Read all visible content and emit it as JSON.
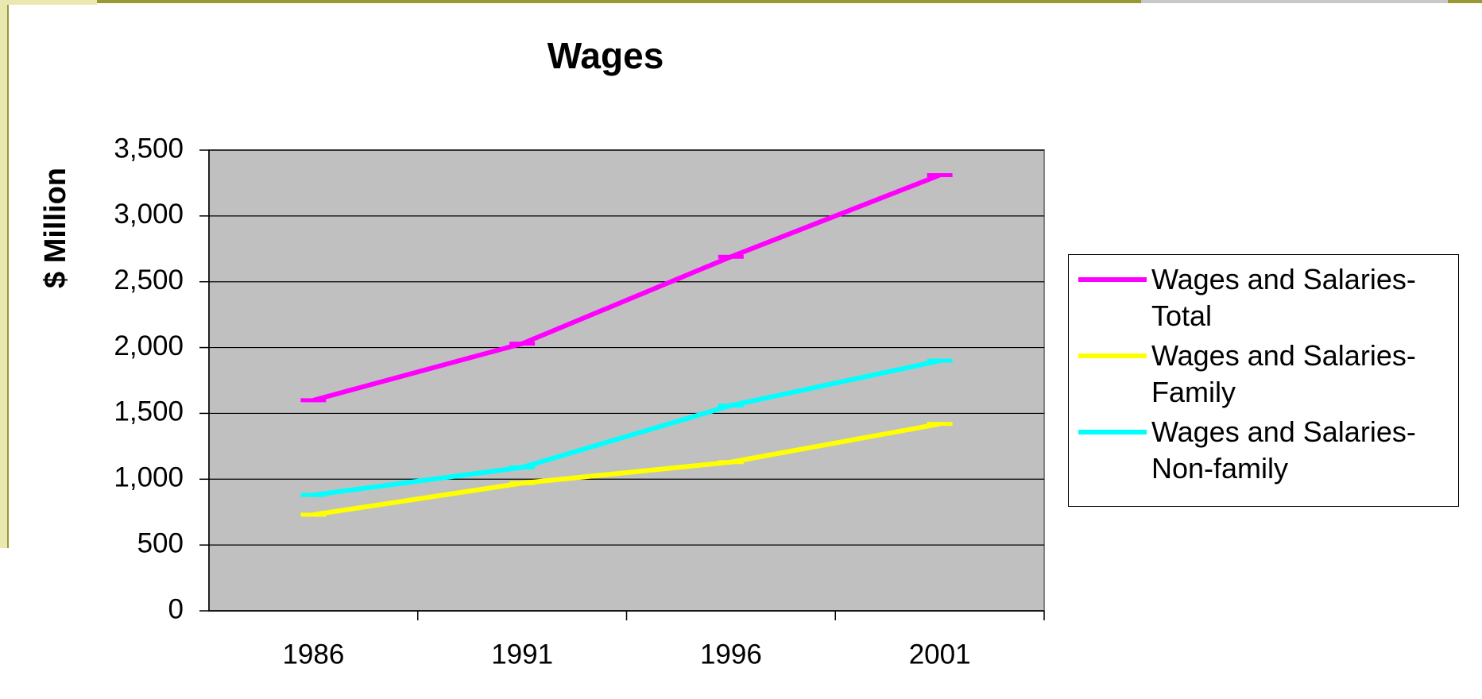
{
  "chart_data": {
    "type": "line",
    "title": "Wages",
    "y_label": "$ Million",
    "categories": [
      "1986",
      "1991",
      "1996",
      "2001"
    ],
    "series": [
      {
        "name": "Wages and Salaries-Total",
        "color": "#ff00ff",
        "values": [
          1600,
          2030,
          2690,
          3310
        ]
      },
      {
        "name": "Wages and Salaries-Family",
        "color": "#ffff00",
        "values": [
          730,
          970,
          1130,
          1420
        ]
      },
      {
        "name": "Wages and Salaries-Non-family",
        "color": "#00ffff",
        "values": [
          880,
          1090,
          1560,
          1900
        ]
      }
    ],
    "ylim": [
      0,
      3500
    ],
    "yticks": [
      0,
      {
        "value": 500,
        "label": "500"
      },
      {
        "value": 1000,
        "label": "1,000"
      },
      {
        "value": 1500,
        "label": "1,500"
      },
      {
        "value": 2000,
        "label": "2,000"
      },
      {
        "value": 2500,
        "label": "2,500"
      },
      {
        "value": 3000,
        "label": "3,000"
      },
      {
        "value": 3500,
        "label": "3,500"
      }
    ],
    "grid": true,
    "legend": "right",
    "plot_background": "#c0c0c0"
  }
}
